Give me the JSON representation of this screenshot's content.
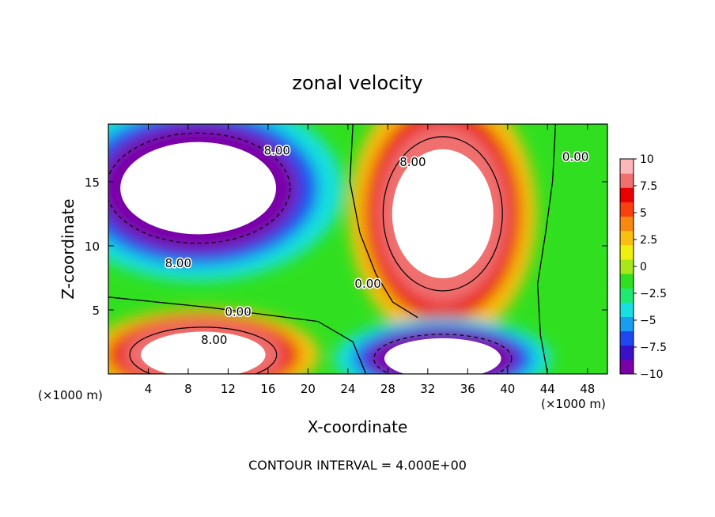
{
  "chart_data": {
    "type": "heatmap",
    "title": "zonal velocity",
    "xlabel": "X-coordinate",
    "ylabel": "Z-coordinate",
    "x_unit_left": "(×1000 m)",
    "x_unit_right": "(×1000 m)",
    "xlim": [
      0,
      50
    ],
    "ylim": [
      0,
      19.5
    ],
    "xticks": [
      4,
      8,
      12,
      16,
      20,
      24,
      28,
      32,
      36,
      40,
      44,
      48
    ],
    "yticks": [
      5,
      10,
      15
    ],
    "footer": "CONTOUR INTERVAL = 4.000E+00",
    "colorbar": {
      "min": -10,
      "max": 10,
      "tick_values": [
        10,
        7.5,
        5,
        2.5,
        0,
        -2.5,
        -5,
        -7.5,
        -10
      ],
      "tick_labels": [
        "10",
        "7.5",
        "5",
        "2.5",
        "0",
        "−2.5",
        "−5",
        "−7.5",
        "−10"
      ],
      "colors": [
        "#7a00a8",
        "#3a10c8",
        "#1e48f0",
        "#1a9cf0",
        "#18e0e0",
        "#20e870",
        "#30e020",
        "#a8e818",
        "#f0f010",
        "#f8c010",
        "#f88810",
        "#f84010",
        "#e80000",
        "#f07070",
        "#fcb8b8"
      ]
    },
    "contour_labels": [
      {
        "text": "8.00",
        "x": 16.9,
        "y": 17.5
      },
      {
        "text": "8.00",
        "x": 30.5,
        "y": 16.6
      },
      {
        "text": "0.00",
        "x": 46.8,
        "y": 17.0
      },
      {
        "text": "8.00",
        "x": 7.0,
        "y": 8.7
      },
      {
        "text": "0.00",
        "x": 26.0,
        "y": 7.1
      },
      {
        "text": "0.00",
        "x": 13.0,
        "y": 4.9
      },
      {
        "text": "8.00",
        "x": 10.6,
        "y": 2.7
      }
    ],
    "features": [
      {
        "kind": "min",
        "x": 9,
        "y": 14.5,
        "rx": 10,
        "ry": 5,
        "value": -10
      },
      {
        "kind": "max",
        "x": 33.5,
        "y": 12.5,
        "rx": 6.5,
        "ry": 7,
        "value": 10
      },
      {
        "kind": "max",
        "x": 9.5,
        "y": 1.5,
        "rx": 8,
        "ry": 2.5,
        "value": 10
      },
      {
        "kind": "min",
        "x": 33.5,
        "y": 1.2,
        "rx": 7.5,
        "ry": 2.2,
        "value": -10
      }
    ]
  }
}
